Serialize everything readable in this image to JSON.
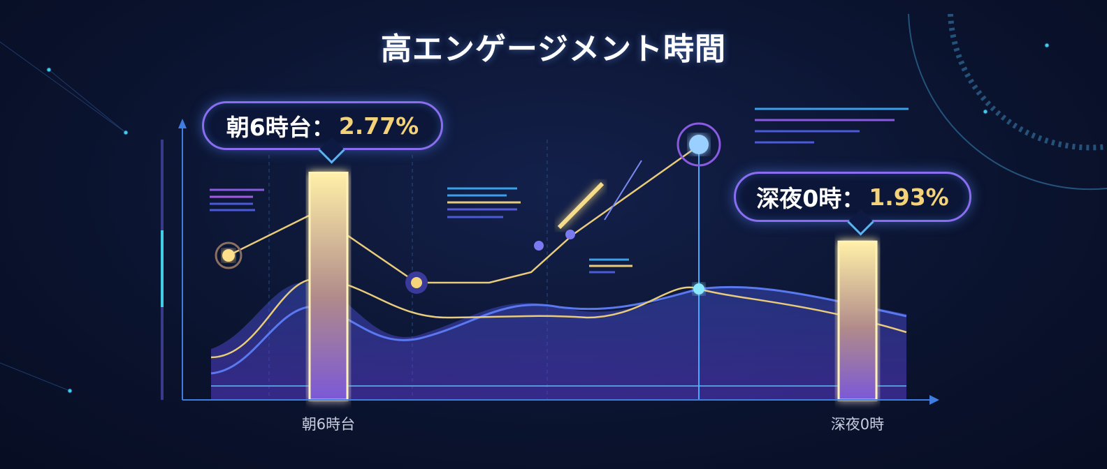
{
  "title": "高エンゲージメント時間",
  "chart_data": {
    "type": "bar",
    "title": "高エンゲージメント時間",
    "categories": [
      "朝6時台",
      "深夜0時"
    ],
    "values": [
      2.77,
      1.93
    ],
    "unit": "%",
    "annotations": [
      {
        "label": "朝6時台：",
        "value": "2.77%"
      },
      {
        "label": "深夜0時：",
        "value": "1.93%"
      }
    ],
    "ylim": [
      0,
      3.4
    ],
    "grid": false,
    "colors": {
      "bar": "#f6dc8a",
      "line_gold": "#e8cc7c",
      "line_blue": "#5a78f0",
      "accent": "#8a6df0",
      "axis": "#3f7de0"
    }
  }
}
